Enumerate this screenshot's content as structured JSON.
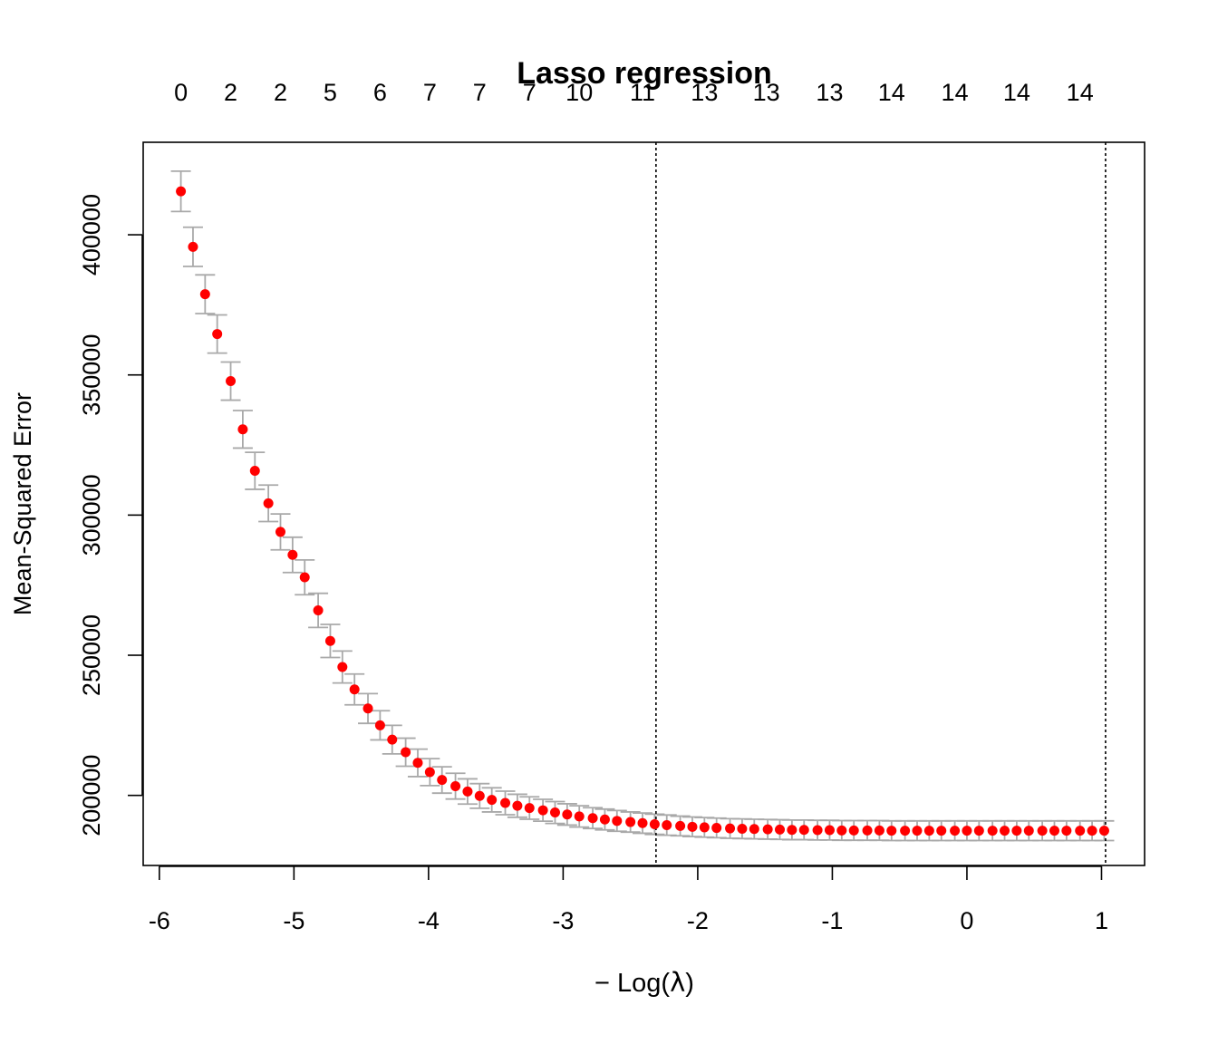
{
  "chart_data": {
    "type": "scatter",
    "title": "Lasso regression",
    "xlabel_prefix": "− Log(",
    "xlabel_symbol": "λ",
    "xlabel_suffix": ")",
    "ylabel": "Mean-Squared Error",
    "xlim": [
      -6.12,
      1.32
    ],
    "ylim": [
      175000,
      433000
    ],
    "x_ticks": [
      -6,
      -5,
      -4,
      -3,
      -2,
      -1,
      0,
      1
    ],
    "y_ticks": [
      200000,
      250000,
      300000,
      350000,
      400000
    ],
    "top_axis": {
      "positions": [
        -5.84,
        -5.47,
        -5.1,
        -4.73,
        -4.36,
        -3.99,
        -3.62,
        -3.25,
        -2.88,
        -2.41,
        -1.95,
        -1.49,
        -1.02,
        -0.56,
        -0.09,
        0.37,
        0.84
      ],
      "labels": [
        "0",
        "2",
        "2",
        "5",
        "6",
        "7",
        "7",
        "7",
        "10",
        "11",
        "13",
        "13",
        "13",
        "14",
        "14",
        "14",
        "14"
      ]
    },
    "vlines": [
      -2.31,
      1.03
    ],
    "point_color": "#ff0000",
    "errorbar_color": "#a9a9a9",
    "x": [
      -5.84,
      -5.75,
      -5.66,
      -5.57,
      -5.47,
      -5.38,
      -5.29,
      -5.19,
      -5.1,
      -5.01,
      -4.92,
      -4.82,
      -4.73,
      -4.64,
      -4.55,
      -4.45,
      -4.36,
      -4.27,
      -4.17,
      -4.08,
      -3.99,
      -3.9,
      -3.8,
      -3.71,
      -3.62,
      -3.53,
      -3.43,
      -3.34,
      -3.25,
      -3.15,
      -3.06,
      -2.97,
      -2.88,
      -2.78,
      -2.69,
      -2.6,
      -2.5,
      -2.41,
      -2.32,
      -2.23,
      -2.13,
      -2.04,
      -1.95,
      -1.86,
      -1.76,
      -1.67,
      -1.58,
      -1.48,
      -1.39,
      -1.3,
      -1.21,
      -1.11,
      -1.02,
      -0.93,
      -0.84,
      -0.74,
      -0.65,
      -0.56,
      -0.46,
      -0.37,
      -0.28,
      -0.19,
      -0.09,
      0.0,
      0.09,
      0.19,
      0.28,
      0.37,
      0.46,
      0.56,
      0.65,
      0.74,
      0.84,
      0.93,
      1.02
    ],
    "y": [
      415500,
      395700,
      378800,
      364600,
      347800,
      330600,
      315800,
      304200,
      294000,
      285800,
      277800,
      266000,
      255100,
      245800,
      237800,
      231000,
      225000,
      219900,
      215400,
      211600,
      208300,
      205500,
      203300,
      201400,
      199800,
      198400,
      197300,
      196300,
      195500,
      194700,
      193900,
      193200,
      192500,
      191900,
      191400,
      190900,
      190500,
      190100,
      189700,
      189400,
      189100,
      188800,
      188600,
      188400,
      188200,
      188100,
      188000,
      187900,
      187800,
      187700,
      187700,
      187600,
      187600,
      187500,
      187500,
      187500,
      187500,
      187400,
      187400,
      187400,
      187400,
      187400,
      187400,
      187400,
      187400,
      187400,
      187400,
      187400,
      187400,
      187400,
      187400,
      187400,
      187400,
      187400,
      187400
    ],
    "err": [
      7200,
      7000,
      6900,
      6800,
      6800,
      6700,
      6600,
      6500,
      6400,
      6300,
      6200,
      6100,
      5900,
      5700,
      5500,
      5300,
      5200,
      5100,
      5000,
      4900,
      4800,
      4700,
      4600,
      4500,
      4400,
      4300,
      4200,
      4100,
      4000,
      3900,
      3900,
      3800,
      3800,
      3700,
      3700,
      3700,
      3600,
      3600,
      3600,
      3600,
      3500,
      3500,
      3500,
      3500,
      3500,
      3500,
      3500,
      3500,
      3500,
      3500,
      3500,
      3500,
      3500,
      3500,
      3500,
      3500,
      3500,
      3500,
      3500,
      3500,
      3500,
      3500,
      3500,
      3500,
      3500,
      3500,
      3500,
      3500,
      3500,
      3500,
      3500,
      3500,
      3500,
      3500,
      3500
    ]
  }
}
